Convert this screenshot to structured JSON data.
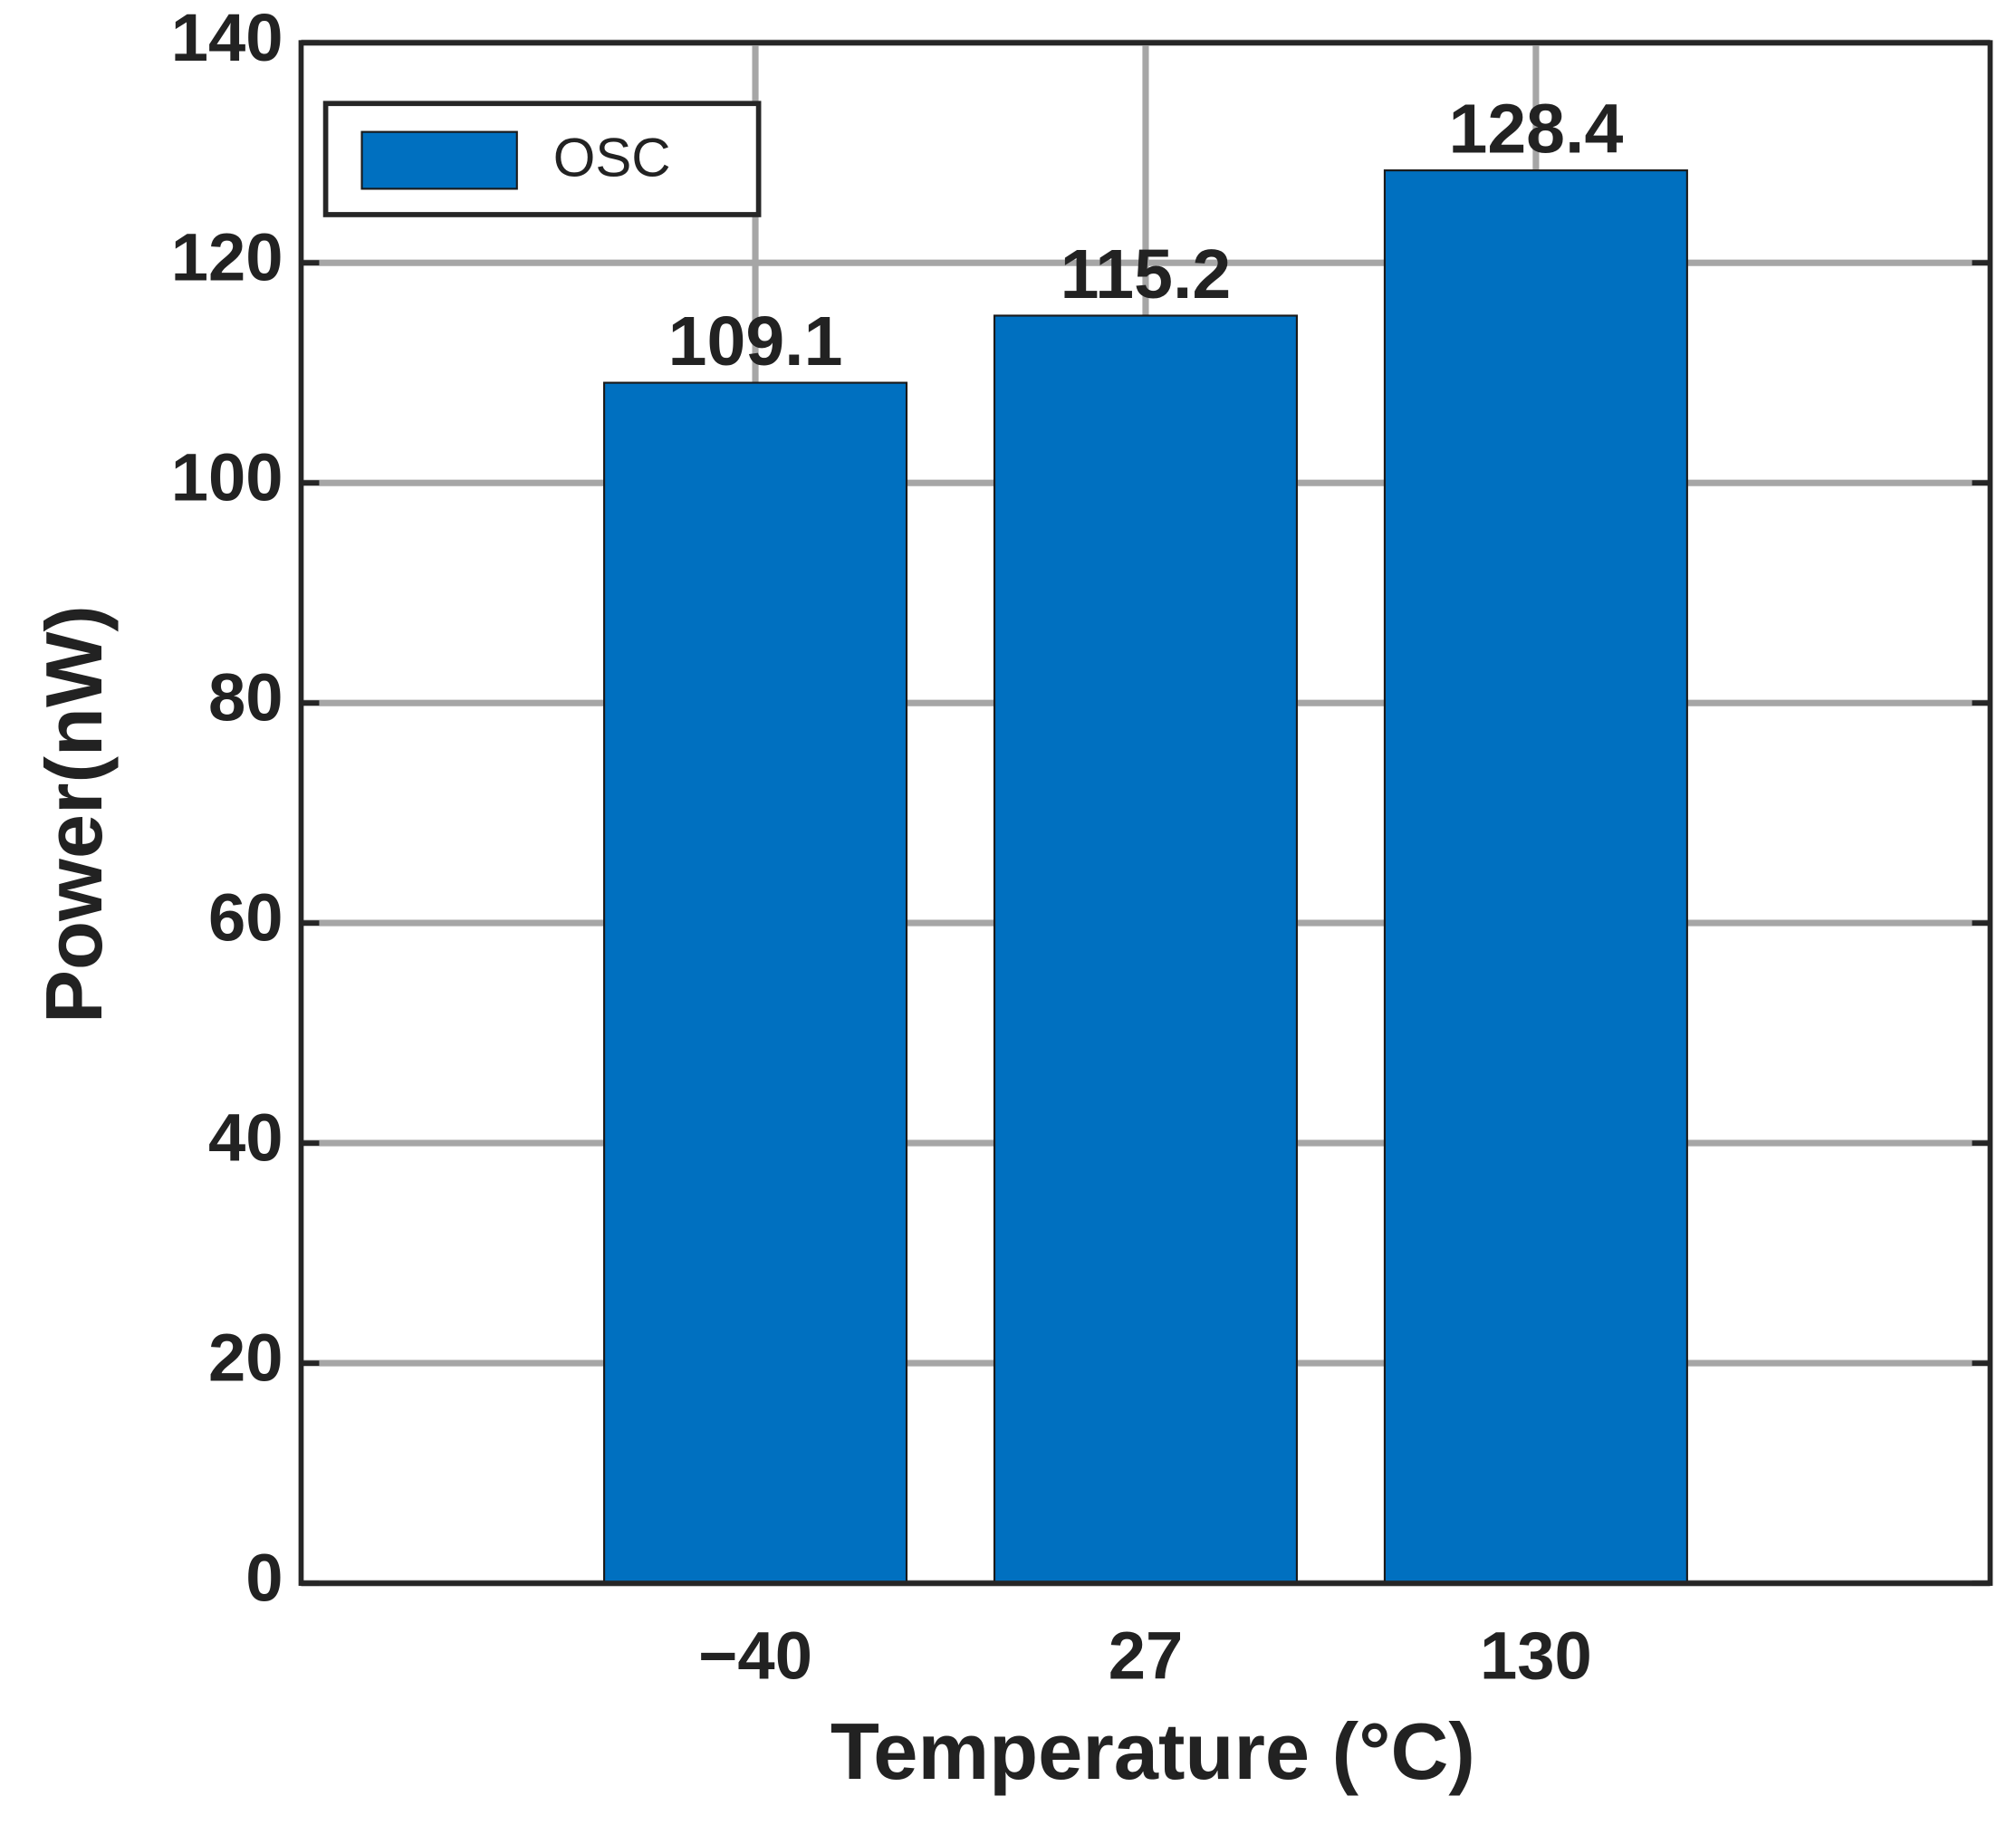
{
  "chart_data": {
    "type": "bar",
    "x_label": "Temperature (°C)",
    "y_label": "Power(nW)",
    "categories": [
      "−40",
      "27",
      "130"
    ],
    "series": [
      {
        "name": "OSC",
        "color": "#0070c0",
        "values": [
          109.1,
          115.2,
          128.4
        ]
      }
    ],
    "ylim": [
      0,
      140
    ],
    "yticks": [
      0,
      20,
      40,
      60,
      80,
      100,
      120,
      140
    ],
    "grid": true,
    "legend": "upper-left"
  }
}
